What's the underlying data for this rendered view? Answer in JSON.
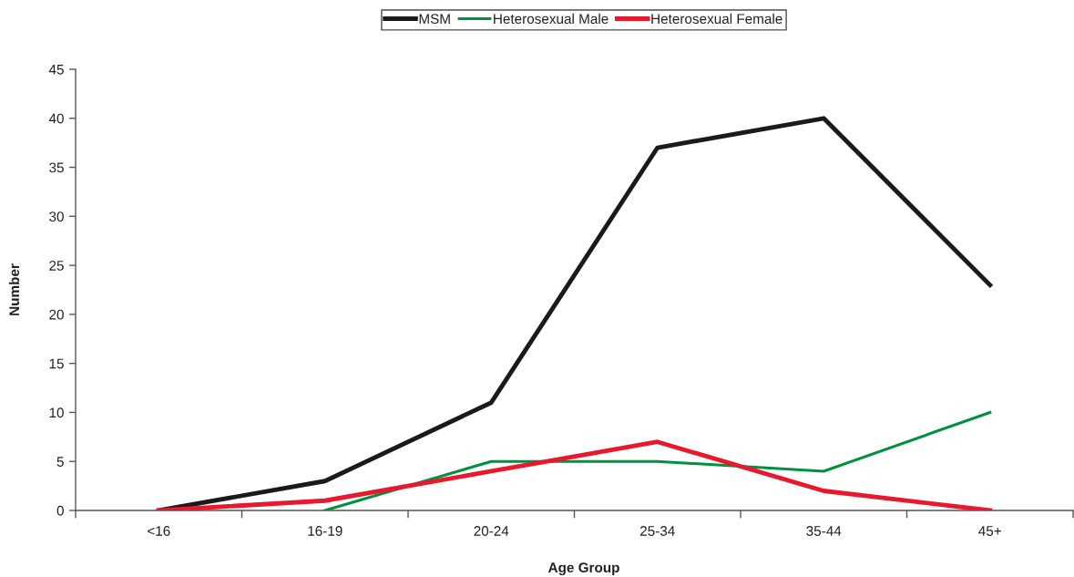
{
  "chart_data": {
    "type": "line",
    "xlabel": "Age Group",
    "ylabel": "Number",
    "categories": [
      "<16",
      "16-19",
      "20-24",
      "25-34",
      "35-44",
      "45+"
    ],
    "series": [
      {
        "name": "MSM",
        "color": "#1a1a1a",
        "values": [
          0,
          3,
          11,
          37,
          40,
          23
        ]
      },
      {
        "name": "Heterosexual Male",
        "color": "#00913f",
        "values": [
          null,
          0,
          5,
          5,
          4,
          10
        ]
      },
      {
        "name": "Heterosexual Female",
        "color": "#e8192c",
        "values": [
          0,
          1,
          4,
          7,
          2,
          0
        ]
      }
    ],
    "ylim": [
      0,
      45
    ],
    "yticks": [
      0,
      5,
      10,
      15,
      20,
      25,
      30,
      35,
      40,
      45
    ],
    "grid": false,
    "legend": "top",
    "marker": "none",
    "line_style": "solid"
  }
}
